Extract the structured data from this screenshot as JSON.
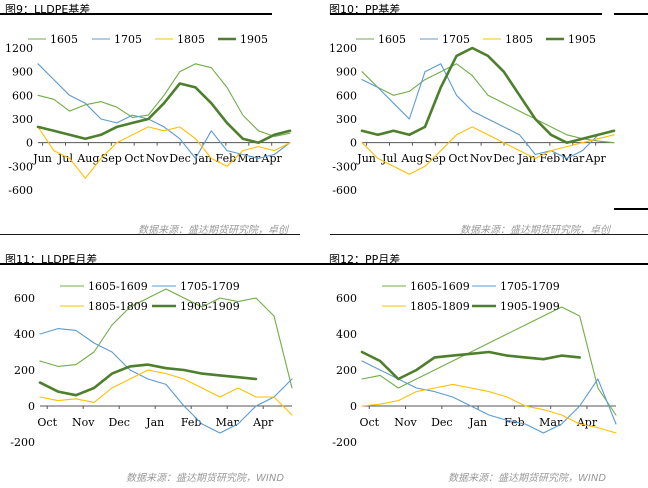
{
  "colors": {
    "s1": "#70ad47",
    "s2": "#5b9bd5",
    "s3": "#ffc000",
    "s4": "#4e7f2c"
  },
  "chart_data": [
    {
      "type": "line",
      "title": "图9：LLDPE基差",
      "source": "数据来源：盛达期货研究院，卓创",
      "x_labels": [
        "Jun",
        "Jul",
        "Aug",
        "Sep",
        "Oct",
        "Nov",
        "Dec",
        "Jan",
        "Feb",
        "Mar",
        "Apr"
      ],
      "yticks": [
        1200,
        900,
        600,
        300,
        0,
        -300,
        -600
      ],
      "ylim": [
        -600,
        1200
      ],
      "series": [
        {
          "name": "1605",
          "color": "#70ad47",
          "width": 1.1,
          "values": [
            600,
            550,
            400,
            480,
            520,
            450,
            320,
            350,
            600,
            900,
            1000,
            950,
            700,
            350,
            150,
            80,
            120
          ]
        },
        {
          "name": "1705",
          "color": "#5b9bd5",
          "width": 1.1,
          "values": [
            1000,
            800,
            600,
            500,
            300,
            250,
            350,
            300,
            200,
            50,
            -200,
            150,
            -100,
            -150,
            -200,
            -150,
            0
          ]
        },
        {
          "name": "1805",
          "color": "#ffc000",
          "width": 1.1,
          "values": [
            200,
            -100,
            -200,
            -450,
            -200,
            0,
            100,
            200,
            150,
            200,
            50,
            -200,
            -300,
            -100,
            -50,
            -100,
            0
          ]
        },
        {
          "name": "1905",
          "color": "#4e7f2c",
          "width": 2.6,
          "values": [
            200,
            150,
            100,
            50,
            100,
            200,
            250,
            300,
            500,
            750,
            700,
            500,
            250,
            50,
            0,
            100,
            150
          ]
        }
      ]
    },
    {
      "type": "line",
      "title": "图10：PP基差",
      "source": "数据来源：盛达期货研究院，卓创",
      "x_labels": [
        "Jun",
        "Jul",
        "Aug",
        "Sep",
        "Oct",
        "Nov",
        "Dec",
        "Jan",
        "Feb",
        "Mar",
        "Apr"
      ],
      "yticks": [
        1200,
        900,
        600,
        300,
        0,
        -300,
        -600
      ],
      "ylim": [
        -600,
        1200
      ],
      "series": [
        {
          "name": "1605",
          "color": "#70ad47",
          "width": 1.1,
          "values": [
            900,
            700,
            600,
            650,
            800,
            900,
            1000,
            850,
            600,
            500,
            400,
            300,
            200,
            100,
            50,
            20,
            0
          ]
        },
        {
          "name": "1705",
          "color": "#5b9bd5",
          "width": 1.1,
          "values": [
            800,
            700,
            500,
            300,
            900,
            1000,
            600,
            400,
            300,
            200,
            100,
            -150,
            -100,
            -200,
            -100,
            100,
            150
          ]
        },
        {
          "name": "1805",
          "color": "#ffc000",
          "width": 1.1,
          "values": [
            0,
            -200,
            -300,
            -400,
            -300,
            -100,
            100,
            200,
            100,
            0,
            -100,
            -200,
            -100,
            -50,
            0,
            50,
            100
          ]
        },
        {
          "name": "1905",
          "color": "#4e7f2c",
          "width": 2.6,
          "values": [
            150,
            100,
            150,
            100,
            200,
            700,
            1100,
            1200,
            1100,
            900,
            600,
            300,
            100,
            0,
            50,
            100,
            150
          ]
        }
      ]
    },
    {
      "type": "line",
      "title": "图11：LLDPE月差",
      "source": "数据来源：盛达期货研究院，WIND",
      "x_labels": [
        "Oct",
        "Nov",
        "Dec",
        "Jan",
        "Feb",
        "Mar",
        "Apr"
      ],
      "yticks": [
        600,
        400,
        200,
        0,
        -200
      ],
      "ylim": [
        -200,
        600
      ],
      "series": [
        {
          "name": "1605-1609",
          "color": "#70ad47",
          "width": 1.1,
          "values": [
            250,
            220,
            230,
            300,
            450,
            550,
            600,
            650,
            600,
            550,
            600,
            580,
            600,
            500,
            100
          ]
        },
        {
          "name": "1705-1709",
          "color": "#5b9bd5",
          "width": 1.1,
          "values": [
            400,
            430,
            420,
            350,
            300,
            200,
            150,
            120,
            0,
            -100,
            -150,
            -100,
            0,
            50,
            150
          ]
        },
        {
          "name": "1805-1809",
          "color": "#ffc000",
          "width": 1.1,
          "values": [
            50,
            30,
            40,
            20,
            100,
            150,
            200,
            180,
            150,
            100,
            50,
            100,
            50,
            50,
            -50
          ]
        },
        {
          "name": "1905-1909",
          "color": "#4e7f2c",
          "width": 2.6,
          "values": [
            130,
            80,
            60,
            100,
            180,
            220,
            230,
            210,
            200,
            180,
            170,
            160,
            150
          ]
        }
      ]
    },
    {
      "type": "line",
      "title": "图12：PP月差",
      "source": "数据来源：盛达期货研究院，WIND",
      "x_labels": [
        "Oct",
        "Nov",
        "Dec",
        "Jan",
        "Feb",
        "Mar",
        "Apr"
      ],
      "yticks": [
        600,
        400,
        200,
        0,
        -200
      ],
      "ylim": [
        -200,
        600
      ],
      "series": [
        {
          "name": "1605-1609",
          "color": "#70ad47",
          "width": 1.1,
          "values": [
            150,
            170,
            100,
            150,
            200,
            250,
            300,
            350,
            400,
            450,
            500,
            550,
            500,
            100,
            -50
          ]
        },
        {
          "name": "1705-1709",
          "color": "#5b9bd5",
          "width": 1.1,
          "values": [
            250,
            200,
            150,
            100,
            80,
            50,
            0,
            -50,
            -80,
            -100,
            -150,
            -100,
            0,
            150,
            -100
          ]
        },
        {
          "name": "1805-1809",
          "color": "#ffc000",
          "width": 1.1,
          "values": [
            0,
            10,
            30,
            80,
            100,
            120,
            100,
            80,
            50,
            0,
            -20,
            -50,
            -100,
            -120,
            -150
          ]
        },
        {
          "name": "1905-1909",
          "color": "#4e7f2c",
          "width": 2.6,
          "values": [
            300,
            250,
            150,
            200,
            270,
            280,
            290,
            300,
            280,
            270,
            260,
            280,
            270
          ]
        }
      ]
    }
  ]
}
